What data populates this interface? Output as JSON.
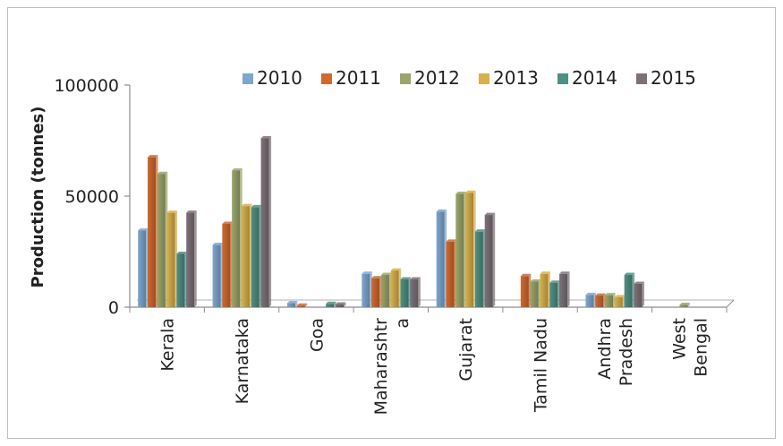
{
  "chart_data": {
    "type": "bar",
    "title": "",
    "xlabel": "",
    "ylabel": "Production (tonnes)",
    "ylim": [
      0,
      100000
    ],
    "yticks": [
      "0",
      "50000",
      "100000"
    ],
    "grid": false,
    "legend_position": "top",
    "categories": [
      [
        "Kerala"
      ],
      [
        "Karnataka"
      ],
      [
        "Goa"
      ],
      [
        "Maharashtr",
        "a"
      ],
      [
        "Gujarat"
      ],
      [
        "Tamil Nadu"
      ],
      [
        "Andhra",
        "Pradesh"
      ],
      [
        "West",
        "Bengal"
      ]
    ],
    "series": [
      {
        "name": "2010",
        "color": "#7ea6cf",
        "values": [
          34500,
          28000,
          1800,
          15000,
          43000,
          0,
          5500,
          0
        ]
      },
      {
        "name": "2011",
        "color": "#d1692e",
        "values": [
          67500,
          37500,
          700,
          13000,
          29500,
          14000,
          5200,
          0
        ]
      },
      {
        "name": "2012",
        "color": "#9aa56a",
        "values": [
          60000,
          61500,
          0,
          14500,
          51000,
          11500,
          5400,
          1000
        ]
      },
      {
        "name": "2013",
        "color": "#d9b04a",
        "values": [
          42500,
          45500,
          0,
          16500,
          51500,
          15000,
          4500,
          0
        ]
      },
      {
        "name": "2014",
        "color": "#4f8f84",
        "values": [
          24000,
          45000,
          1500,
          12500,
          34000,
          11000,
          14500,
          0
        ]
      },
      {
        "name": "2015",
        "color": "#7d7178",
        "values": [
          42500,
          76000,
          1200,
          12500,
          41500,
          15000,
          10500,
          0
        ]
      }
    ]
  }
}
